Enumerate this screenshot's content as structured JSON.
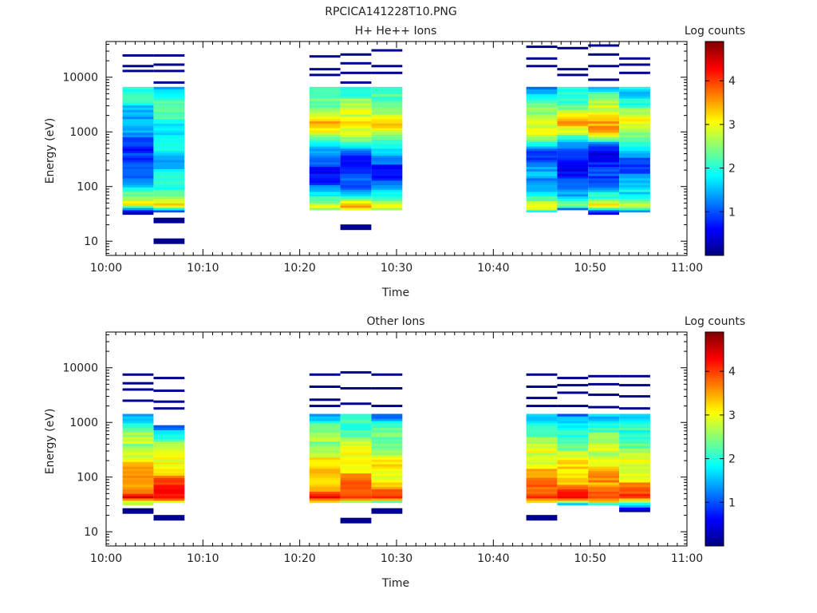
{
  "window_title": "RPCICA141228T10.PNG",
  "colorbar": {
    "label": "Log counts",
    "ticks": [
      1,
      2,
      3,
      4
    ],
    "range": [
      0,
      4.9
    ],
    "colormap": "jet"
  },
  "panels": [
    {
      "title": "H+ He++ Ions",
      "chart_data": {
        "type": "heatmap",
        "title": "H+ He++ Ions",
        "xlabel": "Time",
        "ylabel": "Energy (eV)",
        "x_ticks": [
          "10:00",
          "10:10",
          "10:20",
          "10:30",
          "10:40",
          "10:50",
          "11:00"
        ],
        "y_ticks": [
          "10",
          "100",
          "1000",
          "10000"
        ],
        "y_scale": "log",
        "xlim_minutes": [
          0,
          60
        ],
        "ylim": [
          5.5,
          45000
        ],
        "colorbar_label": "Log counts",
        "time_bins": [
          {
            "start_min": 1.7,
            "end_min": 4.9,
            "profile": [
              [
                32,
                0.4
              ],
              [
                38,
                1.2
              ],
              [
                45,
                3.3
              ],
              [
                60,
                2.6
              ],
              [
                100,
                1.9
              ],
              [
                150,
                1.5
              ],
              [
                300,
                0.8
              ],
              [
                500,
                1.1
              ],
              [
                1000,
                1.4
              ],
              [
                2000,
                1.7
              ],
              [
                4000,
                2.2
              ],
              [
                6500,
                2.0
              ]
            ],
            "sparse": [
              25000,
              16000,
              13000
            ]
          },
          {
            "start_min": 4.9,
            "end_min": 8.1,
            "profile": [
              [
                33,
                0.4
              ],
              [
                38,
                1.4
              ],
              [
                45,
                3.6
              ],
              [
                60,
                3.0
              ],
              [
                100,
                2.3
              ],
              [
                200,
                1.8
              ],
              [
                400,
                1.8
              ],
              [
                1000,
                2.0
              ],
              [
                2000,
                2.2
              ],
              [
                4000,
                2.3
              ],
              [
                6500,
                1.8
              ]
            ],
            "sparse": [
              24,
              10,
              25000,
              17000,
              13000,
              8000
            ]
          },
          {
            "start_min": 21.0,
            "end_min": 24.2,
            "profile": [
              [
                39,
                2.8
              ],
              [
                45,
                3.5
              ],
              [
                60,
                2.2
              ],
              [
                100,
                1.2
              ],
              [
                200,
                0.9
              ],
              [
                400,
                1.4
              ],
              [
                1000,
                3.1
              ],
              [
                1500,
                3.4
              ],
              [
                3000,
                2.6
              ],
              [
                6500,
                2.0
              ]
            ],
            "sparse": [
              24000,
              14000,
              11000
            ]
          },
          {
            "start_min": 24.2,
            "end_min": 27.4,
            "profile": [
              [
                38,
                2.8
              ],
              [
                45,
                3.6
              ],
              [
                60,
                2.4
              ],
              [
                100,
                1.3
              ],
              [
                200,
                0.8
              ],
              [
                400,
                1.2
              ],
              [
                1000,
                3.2
              ],
              [
                1500,
                3.5
              ],
              [
                3000,
                2.7
              ],
              [
                6500,
                2.2
              ]
            ],
            "sparse": [
              18,
              26000,
              18000,
              12000,
              8000
            ]
          },
          {
            "start_min": 27.4,
            "end_min": 30.6,
            "profile": [
              [
                39,
                2.9
              ],
              [
                45,
                3.5
              ],
              [
                60,
                2.3
              ],
              [
                100,
                1.2
              ],
              [
                200,
                0.9
              ],
              [
                400,
                1.5
              ],
              [
                1000,
                3.1
              ],
              [
                1500,
                3.4
              ],
              [
                3000,
                2.6
              ],
              [
                6500,
                2.1
              ]
            ],
            "sparse": [
              31000,
              16000,
              12000
            ]
          },
          {
            "start_min": 43.4,
            "end_min": 46.6,
            "profile": [
              [
                33,
                0.9
              ],
              [
                38,
                2.6
              ],
              [
                45,
                3.3
              ],
              [
                60,
                2.2
              ],
              [
                100,
                1.8
              ],
              [
                200,
                1.4
              ],
              [
                400,
                1.1
              ],
              [
                1000,
                3.0
              ],
              [
                1500,
                3.3
              ],
              [
                3000,
                2.4
              ],
              [
                6500,
                1.5
              ]
            ],
            "sparse": [
              36000,
              22000,
              16000
            ]
          },
          {
            "start_min": 46.6,
            "end_min": 49.8,
            "profile": [
              [
                36,
                0.5
              ],
              [
                40,
                1.6
              ],
              [
                45,
                3.2
              ],
              [
                60,
                2.0
              ],
              [
                100,
                1.2
              ],
              [
                200,
                0.9
              ],
              [
                400,
                1.0
              ],
              [
                600,
                1.4
              ],
              [
                1000,
                3.2
              ],
              [
                1500,
                3.6
              ],
              [
                3000,
                2.6
              ],
              [
                6500,
                1.9
              ]
            ],
            "sparse": [
              34000,
              14000,
              11000
            ]
          },
          {
            "start_min": 49.8,
            "end_min": 53.0,
            "profile": [
              [
                30,
                0.4
              ],
              [
                36,
                1.2
              ],
              [
                45,
                3.3
              ],
              [
                60,
                2.2
              ],
              [
                100,
                1.5
              ],
              [
                200,
                1.0
              ],
              [
                300,
                0.6
              ],
              [
                600,
                1.3
              ],
              [
                1000,
                3.5
              ],
              [
                1500,
                3.9
              ],
              [
                3000,
                2.8
              ],
              [
                6500,
                2.0
              ]
            ],
            "sparse": [
              38000,
              26000,
              16000,
              9000
            ]
          },
          {
            "start_min": 53.0,
            "end_min": 56.2,
            "profile": [
              [
                34,
                1.1
              ],
              [
                40,
                2.4
              ],
              [
                45,
                3.3
              ],
              [
                60,
                2.4
              ],
              [
                100,
                1.6
              ],
              [
                200,
                1.2
              ],
              [
                400,
                1.3
              ],
              [
                1000,
                3.0
              ],
              [
                1500,
                3.2
              ],
              [
                3000,
                2.4
              ],
              [
                6500,
                1.8
              ]
            ],
            "sparse": [
              22000,
              17000,
              12000
            ]
          }
        ]
      }
    },
    {
      "title": "Other Ions",
      "chart_data": {
        "type": "heatmap",
        "title": "Other Ions",
        "xlabel": "Time",
        "ylabel": "Energy (eV)",
        "x_ticks": [
          "10:00",
          "10:10",
          "10:20",
          "10:30",
          "10:40",
          "10:50",
          "11:00"
        ],
        "y_ticks": [
          "10",
          "100",
          "1000",
          "10000"
        ],
        "y_scale": "log",
        "xlim_minutes": [
          0,
          60
        ],
        "ylim": [
          5.5,
          45000
        ],
        "colorbar_label": "Log counts",
        "time_bins": [
          {
            "start_min": 1.7,
            "end_min": 4.9,
            "profile": [
              [
                32,
                2.6
              ],
              [
                36,
                3.0
              ],
              [
                42,
                4.4
              ],
              [
                60,
                4.0
              ],
              [
                100,
                3.7
              ],
              [
                200,
                3.3
              ],
              [
                400,
                2.9
              ],
              [
                800,
                2.4
              ],
              [
                1400,
                1.8
              ]
            ],
            "sparse": [
              24,
              2500,
              4000,
              5200,
              7500
            ]
          },
          {
            "start_min": 4.9,
            "end_min": 8.1,
            "profile": [
              [
                33,
                2.8
              ],
              [
                36,
                3.4
              ],
              [
                42,
                4.6
              ],
              [
                60,
                4.2
              ],
              [
                100,
                3.8
              ],
              [
                200,
                3.3
              ],
              [
                400,
                2.7
              ],
              [
                700,
                2.0
              ],
              [
                900,
                1.1
              ]
            ],
            "sparse": [
              18,
              1800,
              2400,
              3800,
              6500
            ]
          },
          {
            "start_min": 21.0,
            "end_min": 24.2,
            "profile": [
              [
                33,
                2.7
              ],
              [
                37,
                3.3
              ],
              [
                42,
                4.3
              ],
              [
                60,
                3.9
              ],
              [
                100,
                3.5
              ],
              [
                200,
                3.2
              ],
              [
                400,
                2.8
              ],
              [
                800,
                2.4
              ],
              [
                1500,
                1.7
              ]
            ],
            "sparse": [
              2000,
              2600,
              4500,
              7500
            ]
          },
          {
            "start_min": 24.2,
            "end_min": 27.4,
            "profile": [
              [
                34,
                2.8
              ],
              [
                38,
                3.4
              ],
              [
                42,
                4.4
              ],
              [
                60,
                4.1
              ],
              [
                100,
                3.7
              ],
              [
                200,
                3.3
              ],
              [
                400,
                2.9
              ],
              [
                800,
                2.4
              ],
              [
                1500,
                1.8
              ]
            ],
            "sparse": [
              16,
              2200,
              4200,
              8200
            ]
          },
          {
            "start_min": 27.4,
            "end_min": 30.6,
            "profile": [
              [
                34,
                1.6
              ],
              [
                37,
                3.0
              ],
              [
                42,
                4.2
              ],
              [
                60,
                3.8
              ],
              [
                100,
                3.4
              ],
              [
                200,
                3.1
              ],
              [
                400,
                2.7
              ],
              [
                800,
                2.3
              ],
              [
                1500,
                1.2
              ]
            ],
            "sparse": [
              24,
              2000,
              4200,
              7500
            ]
          },
          {
            "start_min": 43.4,
            "end_min": 46.6,
            "profile": [
              [
                33,
                3.2
              ],
              [
                37,
                3.6
              ],
              [
                42,
                4.4
              ],
              [
                60,
                4.0
              ],
              [
                100,
                3.6
              ],
              [
                200,
                3.2
              ],
              [
                400,
                2.8
              ],
              [
                800,
                2.4
              ],
              [
                1500,
                1.4
              ]
            ],
            "sparse": [
              18,
              2000,
              2800,
              4500,
              7500
            ]
          },
          {
            "start_min": 46.6,
            "end_min": 49.8,
            "profile": [
              [
                30,
                0.4
              ],
              [
                34,
                2.9
              ],
              [
                38,
                3.6
              ],
              [
                42,
                4.3
              ],
              [
                60,
                3.9
              ],
              [
                100,
                3.5
              ],
              [
                200,
                3.1
              ],
              [
                400,
                2.6
              ],
              [
                700,
                2.0
              ],
              [
                1500,
                1.4
              ]
            ],
            "sparse": [
              2000,
              3500,
              4800,
              6500
            ]
          },
          {
            "start_min": 49.8,
            "end_min": 53.0,
            "profile": [
              [
                30,
                1.0
              ],
              [
                34,
                2.8
              ],
              [
                38,
                3.7
              ],
              [
                42,
                4.4
              ],
              [
                60,
                4.0
              ],
              [
                100,
                3.6
              ],
              [
                200,
                3.2
              ],
              [
                400,
                2.8
              ],
              [
                800,
                2.4
              ],
              [
                1500,
                1.5
              ]
            ],
            "sparse": [
              1900,
              3200,
              5000,
              7000
            ]
          },
          {
            "start_min": 53.0,
            "end_min": 56.2,
            "profile": [
              [
                24,
                0.4
              ],
              [
                30,
                1.8
              ],
              [
                34,
                2.7
              ],
              [
                38,
                3.4
              ],
              [
                42,
                4.2
              ],
              [
                60,
                3.8
              ],
              [
                100,
                3.4
              ],
              [
                200,
                3.0
              ],
              [
                400,
                2.6
              ],
              [
                800,
                2.2
              ],
              [
                1500,
                1.5
              ]
            ],
            "sparse": [
              1800,
              3000,
              4800,
              7000
            ]
          }
        ]
      }
    }
  ]
}
